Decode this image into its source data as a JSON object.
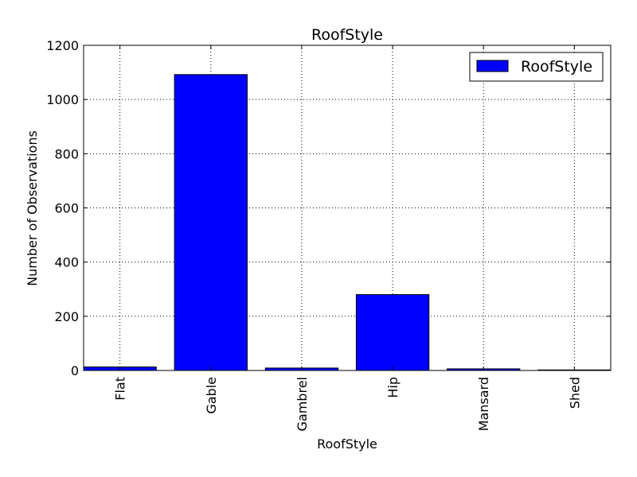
{
  "chart_data": {
    "type": "bar",
    "title": "RoofStyle",
    "xlabel": "RoofStyle",
    "ylabel": "Number of Observations",
    "categories": [
      "Flat",
      "Gable",
      "Gambrel",
      "Hip",
      "Mansard",
      "Shed"
    ],
    "series": [
      {
        "name": "RoofStyle",
        "values": [
          13,
          1092,
          9,
          280,
          6,
          2
        ],
        "color": "#0000ff"
      }
    ],
    "ylim": [
      0,
      1200
    ],
    "yticks": [
      0,
      200,
      400,
      600,
      800,
      1000,
      1200
    ],
    "grid": true,
    "legend": "top-right"
  }
}
